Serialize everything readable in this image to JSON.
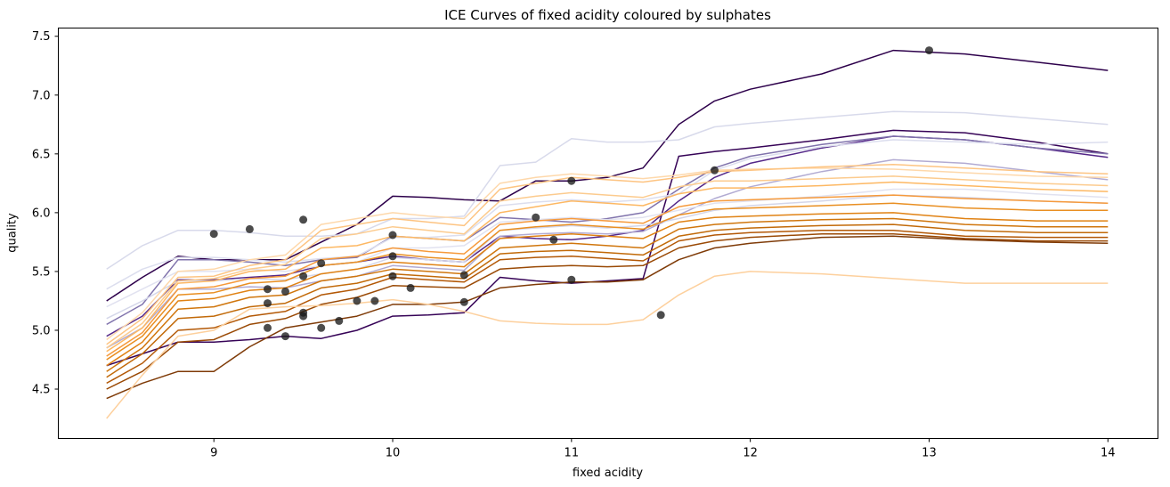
{
  "figure": {
    "title": "ICE Curves of fixed acidity coloured by sulphates",
    "xlabel": "fixed acidity",
    "ylabel": "quality"
  },
  "chart_data": {
    "type": "line",
    "title": "ICE Curves of fixed acidity coloured by sulphates",
    "xlabel": "fixed acidity",
    "ylabel": "quality",
    "xlim": [
      8.13,
      14.28
    ],
    "ylim": [
      4.08,
      7.57
    ],
    "grid": false,
    "legend": "none",
    "xticks": {
      "values": [
        9,
        10,
        11,
        12,
        13,
        14
      ],
      "labels": [
        "9",
        "10",
        "11",
        "12",
        "13",
        "14"
      ]
    },
    "yticks": {
      "values": [
        4.5,
        5.0,
        5.5,
        6.0,
        6.5,
        7.0,
        7.5
      ],
      "labels": [
        "4.5",
        "5.0",
        "5.5",
        "6.0",
        "6.5",
        "7.0",
        "7.5"
      ]
    },
    "x": [
      8.4,
      8.6,
      8.8,
      9.0,
      9.2,
      9.4,
      9.6,
      9.8,
      10.0,
      10.2,
      10.4,
      10.6,
      10.8,
      11.0,
      11.2,
      11.4,
      11.6,
      11.8,
      12.0,
      12.4,
      12.8,
      13.2,
      13.6,
      14.0
    ],
    "series": [
      {
        "name": "ice-high-sulphates-1",
        "color": "#2d004b",
        "y": [
          5.25,
          5.45,
          5.63,
          5.6,
          5.6,
          5.6,
          5.75,
          5.9,
          6.14,
          6.13,
          6.11,
          6.1,
          6.27,
          6.27,
          6.3,
          6.38,
          6.75,
          6.95,
          7.05,
          7.18,
          7.38,
          7.35,
          7.28,
          7.21
        ]
      },
      {
        "name": "ice-high-sulphates-2",
        "color": "#360357",
        "y": [
          4.7,
          4.8,
          4.9,
          4.9,
          4.92,
          4.95,
          4.93,
          5.0,
          5.12,
          5.13,
          5.15,
          5.45,
          5.42,
          5.4,
          5.42,
          5.44,
          6.48,
          6.52,
          6.55,
          6.62,
          6.7,
          6.68,
          6.6,
          6.5
        ]
      },
      {
        "name": "ice-mid-purple-1",
        "color": "#542788",
        "y": [
          4.95,
          5.12,
          5.43,
          5.43,
          5.45,
          5.47,
          5.55,
          5.58,
          5.63,
          5.6,
          5.58,
          5.8,
          5.78,
          5.77,
          5.8,
          5.85,
          6.1,
          6.3,
          6.42,
          6.55,
          6.65,
          6.62,
          6.55,
          6.47
        ]
      },
      {
        "name": "ice-mid-purple-2",
        "color": "#8073ac",
        "y": [
          5.05,
          5.22,
          5.6,
          5.6,
          5.58,
          5.55,
          5.6,
          5.62,
          5.8,
          5.78,
          5.76,
          5.96,
          5.94,
          5.92,
          5.95,
          6.0,
          6.2,
          6.38,
          6.48,
          6.58,
          6.65,
          6.62,
          6.55,
          6.5
        ]
      },
      {
        "name": "ice-mid-purple-3",
        "color": "#b2abd2",
        "y": [
          4.85,
          5.02,
          5.35,
          5.35,
          5.37,
          5.36,
          5.42,
          5.46,
          5.55,
          5.53,
          5.51,
          5.8,
          5.82,
          5.83,
          5.82,
          5.84,
          5.98,
          6.12,
          6.22,
          6.35,
          6.45,
          6.42,
          6.35,
          6.28
        ]
      },
      {
        "name": "ice-light-purple-1",
        "color": "#d8daeb",
        "y": [
          5.52,
          5.72,
          5.85,
          5.85,
          5.83,
          5.8,
          5.8,
          5.82,
          5.95,
          5.95,
          5.97,
          6.4,
          6.43,
          6.63,
          6.6,
          6.6,
          6.62,
          6.73,
          6.76,
          6.81,
          6.86,
          6.85,
          6.8,
          6.75
        ]
      },
      {
        "name": "ice-light-purple-2",
        "color": "#dcdeee",
        "y": [
          5.35,
          5.52,
          5.62,
          5.62,
          5.6,
          5.58,
          5.61,
          5.63,
          5.79,
          5.79,
          5.81,
          6.06,
          6.09,
          6.11,
          6.09,
          6.11,
          6.16,
          6.36,
          6.46,
          6.56,
          6.62,
          6.6,
          6.58,
          6.6
        ]
      },
      {
        "name": "ice-light-purple-3",
        "color": "#e1e2f0",
        "y": [
          5.2,
          5.35,
          5.5,
          5.5,
          5.52,
          5.5,
          5.55,
          5.58,
          5.7,
          5.7,
          5.72,
          5.92,
          5.94,
          5.96,
          5.94,
          5.96,
          6.02,
          6.08,
          6.1,
          6.14,
          6.2,
          6.2,
          6.16,
          6.13
        ]
      },
      {
        "name": "ice-light-purple-4",
        "color": "#d4d6e9",
        "y": [
          5.1,
          5.25,
          5.42,
          5.42,
          5.44,
          5.43,
          5.48,
          5.52,
          5.62,
          5.6,
          5.58,
          5.85,
          5.87,
          5.89,
          5.87,
          5.89,
          5.95,
          6.02,
          6.06,
          6.1,
          6.15,
          6.13,
          6.1,
          6.08
        ]
      },
      {
        "name": "ice-light-orange-1",
        "color": "#fed8ab",
        "y": [
          4.92,
          5.15,
          5.5,
          5.52,
          5.6,
          5.64,
          5.9,
          5.95,
          6.0,
          5.97,
          5.95,
          6.25,
          6.3,
          6.33,
          6.31,
          6.29,
          6.32,
          6.36,
          6.37,
          6.38,
          6.37,
          6.34,
          6.31,
          6.3
        ]
      },
      {
        "name": "ice-light-orange-2",
        "color": "#fdc482",
        "y": [
          4.88,
          5.1,
          5.45,
          5.46,
          5.55,
          5.6,
          5.85,
          5.9,
          5.95,
          5.92,
          5.89,
          6.2,
          6.25,
          6.3,
          6.28,
          6.26,
          6.3,
          6.35,
          6.36,
          6.39,
          6.41,
          6.38,
          6.35,
          6.33
        ]
      },
      {
        "name": "ice-light-orange-3",
        "color": "#fccb8e",
        "y": [
          4.85,
          5.06,
          5.42,
          5.44,
          5.52,
          5.56,
          5.78,
          5.82,
          5.88,
          5.85,
          5.82,
          6.1,
          6.14,
          6.17,
          6.15,
          6.13,
          6.22,
          6.27,
          6.27,
          6.29,
          6.31,
          6.28,
          6.25,
          6.23
        ]
      },
      {
        "name": "ice-orange-1",
        "color": "#fdb863",
        "y": [
          4.82,
          5.02,
          5.4,
          5.42,
          5.5,
          5.52,
          5.7,
          5.72,
          5.8,
          5.78,
          5.76,
          6.0,
          6.05,
          6.1,
          6.08,
          6.06,
          6.16,
          6.21,
          6.21,
          6.23,
          6.26,
          6.23,
          6.2,
          6.18
        ]
      },
      {
        "name": "ice-orange-2",
        "color": "#f69a3c",
        "y": [
          4.78,
          4.98,
          5.35,
          5.37,
          5.44,
          5.46,
          5.6,
          5.63,
          5.7,
          5.67,
          5.65,
          5.9,
          5.93,
          5.95,
          5.93,
          5.91,
          6.05,
          6.1,
          6.11,
          6.13,
          6.15,
          6.12,
          6.1,
          6.08
        ]
      },
      {
        "name": "ice-orange-3",
        "color": "#e98f22",
        "y": [
          4.75,
          4.95,
          5.3,
          5.32,
          5.4,
          5.42,
          5.55,
          5.58,
          5.65,
          5.62,
          5.6,
          5.85,
          5.88,
          5.9,
          5.88,
          5.86,
          5.98,
          6.03,
          6.04,
          6.06,
          6.08,
          6.04,
          6.02,
          6.02
        ]
      },
      {
        "name": "ice-orange-4",
        "color": "#e08214",
        "y": [
          4.7,
          4.9,
          5.25,
          5.27,
          5.34,
          5.36,
          5.48,
          5.52,
          5.58,
          5.56,
          5.54,
          5.78,
          5.8,
          5.82,
          5.8,
          5.78,
          5.92,
          5.96,
          5.97,
          5.99,
          6.0,
          5.95,
          5.93,
          5.93
        ]
      },
      {
        "name": "ice-orange-5",
        "color": "#d0760d",
        "y": [
          4.65,
          4.85,
          5.18,
          5.2,
          5.28,
          5.3,
          5.42,
          5.46,
          5.52,
          5.5,
          5.48,
          5.7,
          5.72,
          5.74,
          5.72,
          5.7,
          5.86,
          5.9,
          5.92,
          5.94,
          5.95,
          5.9,
          5.88,
          5.88
        ]
      },
      {
        "name": "ice-orange-6",
        "color": "#c26a09",
        "y": [
          4.6,
          4.8,
          5.1,
          5.12,
          5.2,
          5.23,
          5.36,
          5.4,
          5.48,
          5.46,
          5.44,
          5.65,
          5.67,
          5.68,
          5.66,
          5.64,
          5.8,
          5.85,
          5.87,
          5.89,
          5.9,
          5.85,
          5.83,
          5.83
        ]
      },
      {
        "name": "ice-dark-orange-1",
        "color": "#b35806",
        "y": [
          4.55,
          4.72,
          5.0,
          5.02,
          5.12,
          5.16,
          5.3,
          5.35,
          5.45,
          5.43,
          5.41,
          5.6,
          5.62,
          5.63,
          5.61,
          5.59,
          5.76,
          5.81,
          5.83,
          5.85,
          5.85,
          5.8,
          5.79,
          5.79
        ]
      },
      {
        "name": "ice-dark-orange-2",
        "color": "#9a4a06",
        "y": [
          4.5,
          4.65,
          4.9,
          4.92,
          5.05,
          5.1,
          5.22,
          5.28,
          5.38,
          5.37,
          5.36,
          5.52,
          5.54,
          5.55,
          5.54,
          5.55,
          5.7,
          5.76,
          5.79,
          5.82,
          5.82,
          5.78,
          5.76,
          5.76
        ]
      },
      {
        "name": "ice-dark-orange-3",
        "color": "#7f3b08",
        "y": [
          4.42,
          4.55,
          4.65,
          4.65,
          4.86,
          5.02,
          5.07,
          5.12,
          5.22,
          5.22,
          5.24,
          5.36,
          5.39,
          5.41,
          5.41,
          5.43,
          5.6,
          5.7,
          5.74,
          5.79,
          5.8,
          5.77,
          5.75,
          5.74
        ]
      },
      {
        "name": "ice-light-orange-low",
        "color": "#fdd09d",
        "y": [
          4.25,
          4.62,
          4.95,
          5.0,
          5.18,
          5.2,
          5.21,
          5.23,
          5.26,
          5.22,
          5.16,
          5.08,
          5.06,
          5.05,
          5.05,
          5.09,
          5.3,
          5.46,
          5.5,
          5.48,
          5.44,
          5.4,
          5.4,
          5.4
        ]
      }
    ],
    "scatter": {
      "name": "observed-points",
      "color": "#1a1a1a",
      "opacity": 0.78,
      "points": [
        [
          9.0,
          5.82
        ],
        [
          9.2,
          5.86
        ],
        [
          9.3,
          5.35
        ],
        [
          9.3,
          5.23
        ],
        [
          9.3,
          5.02
        ],
        [
          9.4,
          5.33
        ],
        [
          9.4,
          4.95
        ],
        [
          9.5,
          5.94
        ],
        [
          9.5,
          5.46
        ],
        [
          9.5,
          5.15
        ],
        [
          9.5,
          5.12
        ],
        [
          9.6,
          5.57
        ],
        [
          9.6,
          5.02
        ],
        [
          9.7,
          5.08
        ],
        [
          9.8,
          5.25
        ],
        [
          9.9,
          5.25
        ],
        [
          10.0,
          5.81
        ],
        [
          10.0,
          5.63
        ],
        [
          10.0,
          5.46
        ],
        [
          10.1,
          5.36
        ],
        [
          10.4,
          5.47
        ],
        [
          10.4,
          5.24
        ],
        [
          10.8,
          5.96
        ],
        [
          10.9,
          5.77
        ],
        [
          11.0,
          6.27
        ],
        [
          11.0,
          5.43
        ],
        [
          11.5,
          5.13
        ],
        [
          11.8,
          6.36
        ],
        [
          13.0,
          7.38
        ]
      ]
    }
  }
}
